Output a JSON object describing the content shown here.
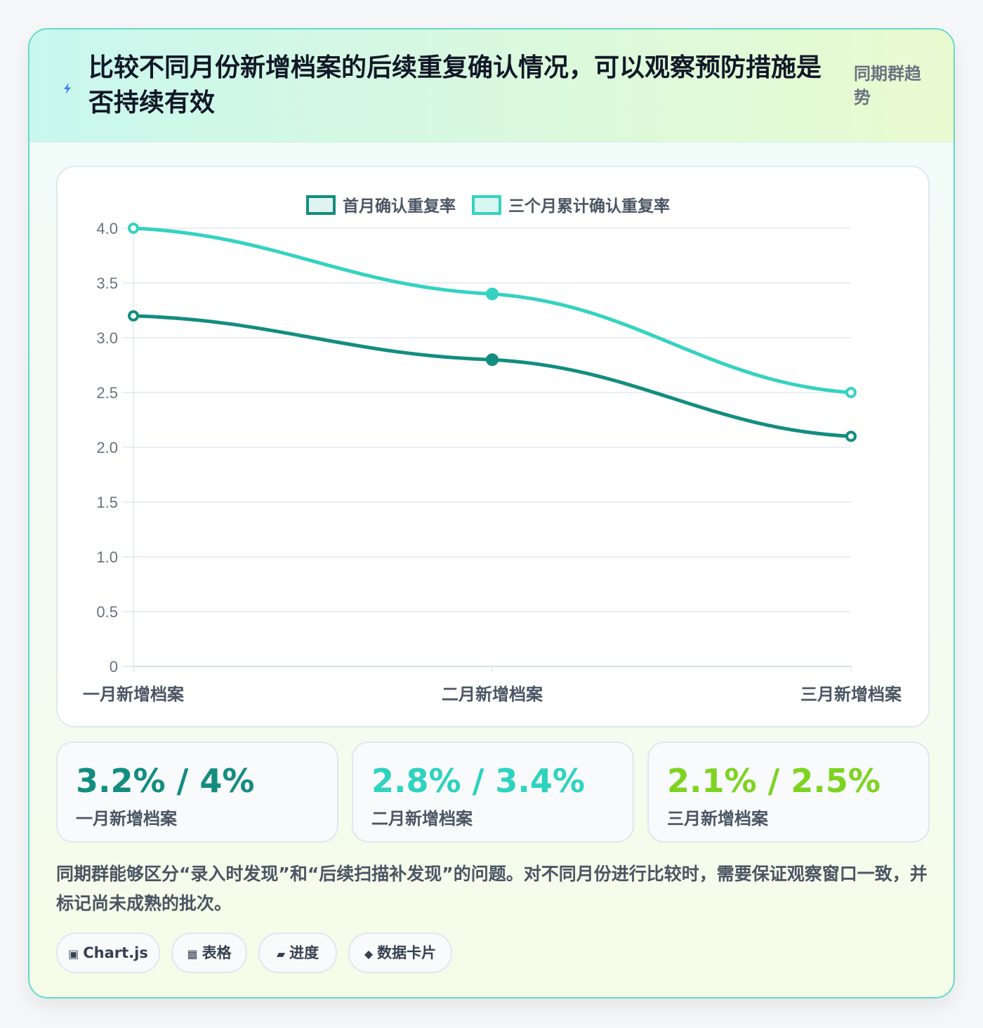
{
  "header": {
    "title": "比较不同月份新增档案的后续重复确认情况，可以观察预防措施是否持续有效",
    "tag": "同期群趋势",
    "icon": "lightning-icon"
  },
  "chart_data": {
    "type": "line",
    "categories": [
      "一月新增档案",
      "二月新增档案",
      "三月新增档案"
    ],
    "series": [
      {
        "name": "首月确认重复率",
        "values": [
          3.2,
          2.8,
          2.1
        ],
        "color": "#138d80"
      },
      {
        "name": "三个月累计确认重复率",
        "values": [
          4.0,
          3.4,
          2.5
        ],
        "color": "#35d2c1"
      }
    ],
    "ylim": [
      0,
      4.0
    ],
    "yticks": [
      "0",
      "0.5",
      "1.0",
      "1.5",
      "2.0",
      "2.5",
      "3.0",
      "3.5",
      "4.0"
    ],
    "legend": "top",
    "grid": true
  },
  "stats": [
    {
      "value": "3.2% / 4%",
      "label": "一月新增档案",
      "color": "#138d80"
    },
    {
      "value": "2.8% / 3.4%",
      "label": "二月新增档案",
      "color": "#2ed3bf"
    },
    {
      "value": "2.1% / 2.5%",
      "label": "三月新增档案",
      "color": "#7ed321"
    }
  ],
  "note": "同期群能够区分“录入时发现”和“后续扫描补发现”的问题。对不同月份进行比较时，需要保证观察窗口一致，并标记尚未成熟的批次。",
  "chips": [
    {
      "icon": "▣",
      "label": "Chart.js"
    },
    {
      "icon": "▦",
      "label": "表格"
    },
    {
      "icon": "▰",
      "label": "进度"
    },
    {
      "icon": "◆",
      "label": "数据卡片"
    }
  ]
}
